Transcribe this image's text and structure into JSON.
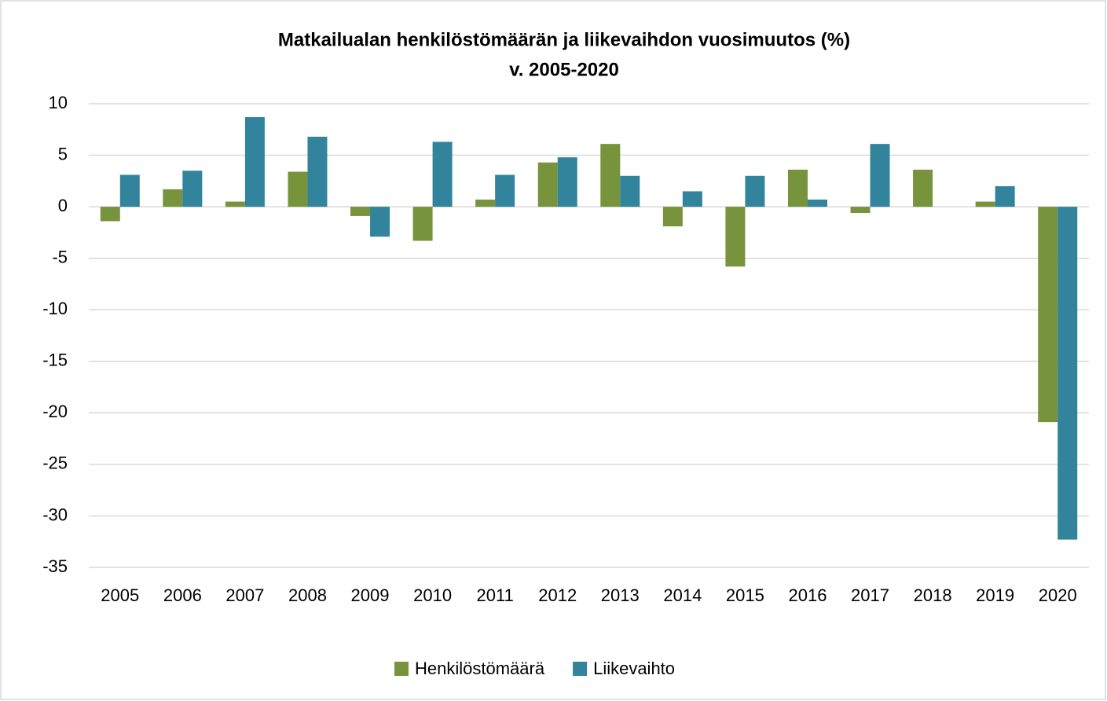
{
  "chart_data": {
    "type": "bar",
    "title": [
      "Matkailualan henkilöstömäärän ja liikevaihdon vuosimuutos (%)",
      "v. 2005-2020"
    ],
    "categories": [
      "2005",
      "2006",
      "2007",
      "2008",
      "2009",
      "2010",
      "2011",
      "2012",
      "2013",
      "2014",
      "2015",
      "2016",
      "2017",
      "2018",
      "2019",
      "2020"
    ],
    "series": [
      {
        "name": "Henkilöstömäärä",
        "color": "#77933c",
        "values": [
          -1.4,
          1.7,
          0.5,
          3.4,
          -0.9,
          -3.3,
          0.7,
          4.3,
          6.1,
          -1.9,
          -5.8,
          3.6,
          -0.6,
          3.6,
          0.5,
          -20.9
        ]
      },
      {
        "name": "Liikevaihto",
        "color": "#31849b",
        "values": [
          3.1,
          3.5,
          8.7,
          6.8,
          -2.9,
          6.3,
          3.1,
          4.8,
          3.0,
          1.5,
          3.0,
          0.7,
          6.1,
          0,
          2.0,
          -32.3
        ]
      }
    ],
    "ylim": [
      -35,
      10
    ],
    "yticks": [
      -35,
      -30,
      -25,
      -20,
      -15,
      -10,
      -5,
      0,
      5,
      10
    ],
    "grid": true,
    "legend": "bottom"
  }
}
